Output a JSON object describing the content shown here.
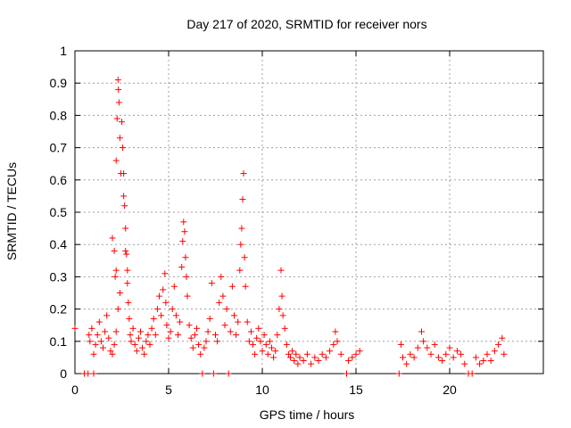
{
  "chart_data": {
    "type": "scatter",
    "title": "Day 217 of 2020, SRMTID for receiver nors",
    "xlabel": "GPS time / hours",
    "ylabel": "SRMTID / TECUs",
    "xlim": [
      0,
      25
    ],
    "ylim": [
      0,
      1
    ],
    "x_ticks": [
      "0",
      "5",
      "10",
      "15",
      "20"
    ],
    "y_ticks": [
      "0",
      "0.1",
      "0.2",
      "0.3",
      "0.4",
      "0.5",
      "0.6",
      "0.7",
      "0.8",
      "0.9",
      "1"
    ],
    "grid": true,
    "marker": "+",
    "colors": {
      "series": "#ff0000",
      "grid": "#a0a0a0",
      "axis": "#000000"
    },
    "series": [
      {
        "name": "nors",
        "points": [
          [
            0.0,
            0.14
          ],
          [
            0.5,
            0.0
          ],
          [
            0.7,
            0.0
          ],
          [
            1.0,
            0.0
          ],
          [
            0.75,
            0.12
          ],
          [
            0.8,
            0.1
          ],
          [
            0.9,
            0.14
          ],
          [
            1.0,
            0.06
          ],
          [
            1.1,
            0.09
          ],
          [
            1.2,
            0.12
          ],
          [
            1.3,
            0.16
          ],
          [
            1.4,
            0.1
          ],
          [
            1.5,
            0.08
          ],
          [
            1.6,
            0.13
          ],
          [
            1.7,
            0.18
          ],
          [
            1.8,
            0.11
          ],
          [
            1.9,
            0.07
          ],
          [
            2.0,
            0.06
          ],
          [
            2.1,
            0.09
          ],
          [
            2.2,
            0.13
          ],
          [
            2.0,
            0.42
          ],
          [
            2.1,
            0.38
          ],
          [
            2.15,
            0.3
          ],
          [
            2.2,
            0.66
          ],
          [
            2.25,
            0.79
          ],
          [
            2.3,
            0.91
          ],
          [
            2.32,
            0.88
          ],
          [
            2.35,
            0.84
          ],
          [
            2.4,
            0.73
          ],
          [
            2.45,
            0.62
          ],
          [
            2.5,
            0.78
          ],
          [
            2.55,
            0.7
          ],
          [
            2.6,
            0.62
          ],
          [
            2.65,
            0.52
          ],
          [
            2.7,
            0.45
          ],
          [
            2.75,
            0.37
          ],
          [
            2.8,
            0.28
          ],
          [
            2.85,
            0.22
          ],
          [
            2.9,
            0.17
          ],
          [
            2.4,
            0.25
          ],
          [
            2.3,
            0.2
          ],
          [
            2.2,
            0.32
          ],
          [
            2.6,
            0.55
          ],
          [
            2.7,
            0.38
          ],
          [
            2.8,
            0.32
          ],
          [
            2.95,
            0.12
          ],
          [
            3.0,
            0.1
          ],
          [
            3.1,
            0.14
          ],
          [
            3.2,
            0.09
          ],
          [
            3.3,
            0.07
          ],
          [
            3.4,
            0.11
          ],
          [
            3.5,
            0.13
          ],
          [
            3.6,
            0.08
          ],
          [
            3.7,
            0.06
          ],
          [
            3.8,
            0.1
          ],
          [
            3.9,
            0.12
          ],
          [
            4.0,
            0.09
          ],
          [
            4.1,
            0.14
          ],
          [
            4.2,
            0.17
          ],
          [
            4.3,
            0.12
          ],
          [
            4.4,
            0.2
          ],
          [
            4.5,
            0.24
          ],
          [
            4.6,
            0.18
          ],
          [
            4.7,
            0.26
          ],
          [
            4.8,
            0.31
          ],
          [
            4.85,
            0.22
          ],
          [
            4.9,
            0.15
          ],
          [
            5.0,
            0.11
          ],
          [
            5.1,
            0.13
          ],
          [
            5.2,
            0.2
          ],
          [
            5.3,
            0.27
          ],
          [
            5.4,
            0.18
          ],
          [
            5.5,
            0.12
          ],
          [
            5.6,
            0.16
          ],
          [
            5.7,
            0.33
          ],
          [
            5.75,
            0.41
          ],
          [
            5.8,
            0.47
          ],
          [
            5.85,
            0.44
          ],
          [
            5.9,
            0.36
          ],
          [
            5.95,
            0.3
          ],
          [
            6.0,
            0.24
          ],
          [
            6.1,
            0.15
          ],
          [
            6.2,
            0.11
          ],
          [
            6.3,
            0.08
          ],
          [
            6.4,
            0.12
          ],
          [
            6.5,
            0.14
          ],
          [
            6.6,
            0.09
          ],
          [
            6.7,
            0.06
          ],
          [
            6.8,
            0.0
          ],
          [
            6.9,
            0.08
          ],
          [
            7.0,
            0.1
          ],
          [
            7.1,
            0.13
          ],
          [
            7.2,
            0.17
          ],
          [
            7.3,
            0.28
          ],
          [
            7.4,
            0.0
          ],
          [
            7.5,
            0.12
          ],
          [
            7.6,
            0.1
          ],
          [
            7.7,
            0.22
          ],
          [
            7.8,
            0.3
          ],
          [
            7.9,
            0.24
          ],
          [
            8.0,
            0.15
          ],
          [
            8.1,
            0.2
          ],
          [
            8.2,
            0.0
          ],
          [
            8.3,
            0.13
          ],
          [
            8.4,
            0.27
          ],
          [
            8.5,
            0.18
          ],
          [
            8.6,
            0.12
          ],
          [
            8.7,
            0.16
          ],
          [
            8.8,
            0.32
          ],
          [
            8.85,
            0.4
          ],
          [
            8.9,
            0.45
          ],
          [
            8.95,
            0.54
          ],
          [
            9.0,
            0.62
          ],
          [
            9.05,
            0.36
          ],
          [
            9.1,
            0.27
          ],
          [
            9.2,
            0.16
          ],
          [
            9.3,
            0.1
          ],
          [
            9.4,
            0.13
          ],
          [
            9.5,
            0.09
          ],
          [
            9.6,
            0.06
          ],
          [
            9.7,
            0.11
          ],
          [
            9.8,
            0.14
          ],
          [
            9.9,
            0.1
          ],
          [
            10.0,
            0.07
          ],
          [
            10.1,
            0.12
          ],
          [
            10.2,
            0.09
          ],
          [
            10.3,
            0.06
          ],
          [
            10.4,
            0.1
          ],
          [
            10.5,
            0.08
          ],
          [
            10.6,
            0.05
          ],
          [
            10.7,
            0.07
          ],
          [
            10.8,
            0.12
          ],
          [
            10.9,
            0.2
          ],
          [
            11.0,
            0.32
          ],
          [
            11.05,
            0.24
          ],
          [
            11.1,
            0.18
          ],
          [
            11.2,
            0.14
          ],
          [
            11.3,
            0.09
          ],
          [
            11.4,
            0.06
          ],
          [
            11.5,
            0.05
          ],
          [
            11.6,
            0.07
          ],
          [
            11.7,
            0.04
          ],
          [
            11.8,
            0.06
          ],
          [
            11.9,
            0.03
          ],
          [
            12.0,
            0.05
          ],
          [
            12.2,
            0.04
          ],
          [
            12.4,
            0.06
          ],
          [
            12.6,
            0.03
          ],
          [
            12.8,
            0.05
          ],
          [
            13.0,
            0.04
          ],
          [
            13.2,
            0.06
          ],
          [
            13.4,
            0.05
          ],
          [
            13.6,
            0.07
          ],
          [
            13.8,
            0.09
          ],
          [
            13.9,
            0.13
          ],
          [
            14.0,
            0.1
          ],
          [
            14.2,
            0.06
          ],
          [
            14.5,
            0.0
          ],
          [
            14.6,
            0.04
          ],
          [
            14.8,
            0.05
          ],
          [
            15.0,
            0.06
          ],
          [
            15.2,
            0.07
          ],
          [
            17.3,
            0.0
          ],
          [
            17.4,
            0.09
          ],
          [
            17.5,
            0.05
          ],
          [
            17.7,
            0.03
          ],
          [
            17.9,
            0.06
          ],
          [
            18.1,
            0.05
          ],
          [
            18.3,
            0.08
          ],
          [
            18.5,
            0.13
          ],
          [
            18.6,
            0.1
          ],
          [
            18.8,
            0.08
          ],
          [
            19.0,
            0.06
          ],
          [
            19.2,
            0.09
          ],
          [
            19.4,
            0.05
          ],
          [
            19.6,
            0.04
          ],
          [
            19.8,
            0.06
          ],
          [
            20.0,
            0.08
          ],
          [
            20.2,
            0.05
          ],
          [
            20.4,
            0.07
          ],
          [
            20.6,
            0.06
          ],
          [
            20.8,
            0.03
          ],
          [
            21.0,
            0.0
          ],
          [
            21.2,
            0.0
          ],
          [
            21.4,
            0.05
          ],
          [
            21.6,
            0.03
          ],
          [
            21.8,
            0.04
          ],
          [
            22.0,
            0.06
          ],
          [
            22.2,
            0.04
          ],
          [
            22.4,
            0.07
          ],
          [
            22.6,
            0.09
          ],
          [
            22.8,
            0.11
          ],
          [
            22.9,
            0.06
          ]
        ]
      }
    ]
  }
}
